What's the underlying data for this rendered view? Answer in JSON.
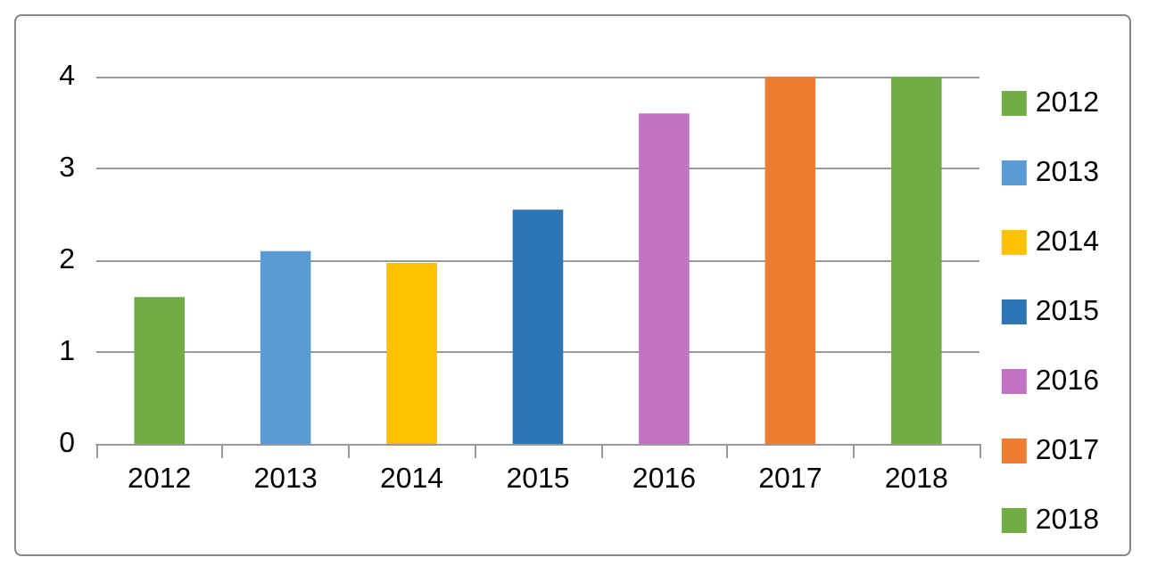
{
  "chart_data": {
    "type": "bar",
    "categories": [
      "2012",
      "2013",
      "2014",
      "2015",
      "2016",
      "2017",
      "2018"
    ],
    "series": [
      {
        "name": "2012",
        "color": "#70ad47",
        "values": [
          1.6,
          null,
          null,
          null,
          null,
          null,
          null
        ]
      },
      {
        "name": "2013",
        "color": "#5b9bd5",
        "values": [
          null,
          2.1,
          null,
          null,
          null,
          null,
          null
        ]
      },
      {
        "name": "2014",
        "color": "#ffc000",
        "values": [
          null,
          null,
          1.97,
          null,
          null,
          null,
          null
        ]
      },
      {
        "name": "2015",
        "color": "#2e75b6",
        "values": [
          null,
          null,
          null,
          2.55,
          null,
          null,
          null
        ]
      },
      {
        "name": "2016",
        "color": "#c373c3",
        "values": [
          null,
          null,
          null,
          null,
          3.6,
          null,
          null
        ]
      },
      {
        "name": "2017",
        "color": "#ed7d31",
        "values": [
          null,
          null,
          null,
          null,
          null,
          4,
          null
        ]
      },
      {
        "name": "2018",
        "color": "#70ad47",
        "values": [
          null,
          null,
          null,
          null,
          null,
          null,
          4
        ]
      }
    ],
    "ylim": [
      0,
      4
    ],
    "yticks": [
      0,
      1,
      2,
      3,
      4
    ],
    "grid": "y",
    "legend": "right"
  }
}
